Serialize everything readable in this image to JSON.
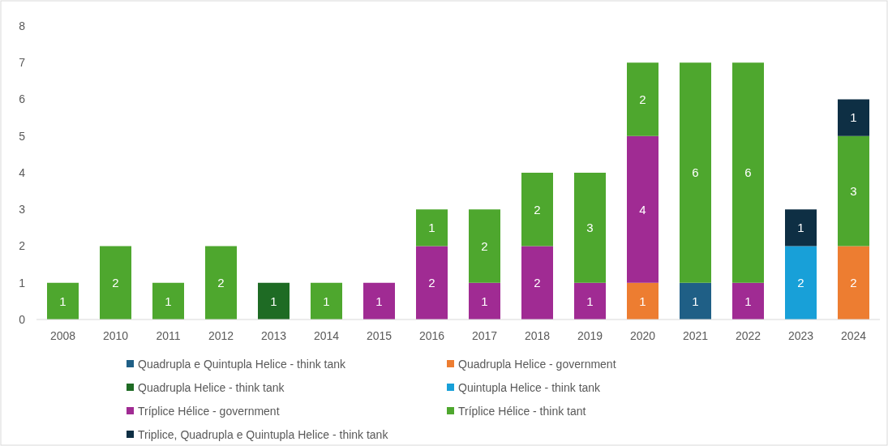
{
  "chart_data": {
    "type": "bar",
    "stacked": true,
    "categories": [
      "2008",
      "2010",
      "2011",
      "2012",
      "2013",
      "2014",
      "2015",
      "2016",
      "2017",
      "2018",
      "2019",
      "2020",
      "2021",
      "2022",
      "2023",
      "2024"
    ],
    "series": [
      {
        "name": "Quadrupla e Quintupla Helice - think tank",
        "color": "#1f5f86",
        "values": [
          null,
          null,
          null,
          null,
          null,
          null,
          null,
          null,
          null,
          null,
          null,
          null,
          1,
          null,
          null,
          null
        ]
      },
      {
        "name": "Quadrupla Helice - government",
        "color": "#ed7d31",
        "values": [
          null,
          null,
          null,
          null,
          null,
          null,
          null,
          null,
          null,
          null,
          null,
          1,
          null,
          null,
          null,
          2
        ]
      },
      {
        "name": "Quadrupla Helice - think tank",
        "color": "#1e6b24",
        "values": [
          null,
          null,
          null,
          null,
          1,
          null,
          null,
          null,
          null,
          null,
          null,
          null,
          null,
          null,
          null,
          null
        ]
      },
      {
        "name": "Quintupla Helice - think tank",
        "color": "#18a0d8",
        "values": [
          null,
          null,
          null,
          null,
          null,
          null,
          null,
          null,
          null,
          null,
          null,
          null,
          null,
          null,
          2,
          null
        ]
      },
      {
        "name": "Tríplice Hélice - government",
        "color": "#a02b93",
        "values": [
          null,
          null,
          null,
          null,
          null,
          null,
          1,
          2,
          1,
          2,
          1,
          4,
          null,
          1,
          null,
          null
        ]
      },
      {
        "name": "Tríplice Hélice - think tant",
        "color": "#4ea72e",
        "values": [
          1,
          2,
          1,
          2,
          null,
          1,
          null,
          1,
          2,
          2,
          3,
          2,
          6,
          6,
          null,
          3
        ]
      },
      {
        "name": "Triplice, Quadrupla e Quintupla Helice - think tank",
        "color": "#0e2f44",
        "values": [
          null,
          null,
          null,
          null,
          null,
          null,
          null,
          null,
          null,
          null,
          null,
          null,
          null,
          null,
          1,
          1
        ]
      }
    ],
    "ylim": [
      0,
      8
    ],
    "yticks": [
      0,
      1,
      2,
      3,
      4,
      5,
      6,
      7,
      8
    ],
    "data_labels": true,
    "legend": "bottom",
    "grid": false
  }
}
